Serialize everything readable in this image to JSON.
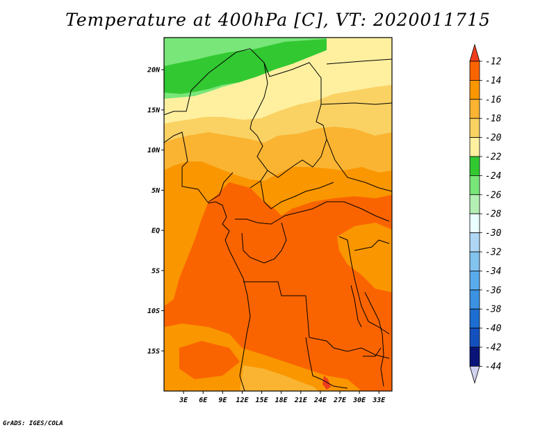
{
  "title": "Temperature at 400hPa [C], VT: 2020011715",
  "credit": "GrADS: IGES/COLA",
  "map": {
    "lon_range": [
      0,
      35
    ],
    "lat_range": [
      -20,
      24
    ],
    "lat_ticks": [
      {
        "value": 20,
        "label": "20N"
      },
      {
        "value": 15,
        "label": "15N"
      },
      {
        "value": 10,
        "label": "10N"
      },
      {
        "value": 5,
        "label": "5N"
      },
      {
        "value": 0,
        "label": "EQ"
      },
      {
        "value": -5,
        "label": "5S"
      },
      {
        "value": -10,
        "label": "10S"
      },
      {
        "value": -15,
        "label": "15S"
      }
    ],
    "lon_ticks": [
      {
        "value": 3,
        "label": "3E"
      },
      {
        "value": 6,
        "label": "6E"
      },
      {
        "value": 9,
        "label": "9E"
      },
      {
        "value": 12,
        "label": "12E"
      },
      {
        "value": 15,
        "label": "15E"
      },
      {
        "value": 18,
        "label": "18E"
      },
      {
        "value": 21,
        "label": "21E"
      },
      {
        "value": 24,
        "label": "24E"
      },
      {
        "value": 27,
        "label": "27E"
      },
      {
        "value": 30,
        "label": "30E"
      },
      {
        "value": 33,
        "label": "33E"
      }
    ]
  },
  "colorbar": {
    "labels": [
      "-12",
      "-14",
      "-16",
      "-18",
      "-20",
      "-22",
      "-24",
      "-26",
      "-28",
      "-30",
      "-32",
      "-34",
      "-36",
      "-38",
      "-40",
      "-42",
      "-44"
    ],
    "colors": [
      "#f03c1e",
      "#fa6400",
      "#fa9600",
      "#fab432",
      "#fad264",
      "#fff0a0",
      "#32c832",
      "#78e678",
      "#b4f0b4",
      "#eaffff",
      "#afd7f5",
      "#82c3f0",
      "#5aabeb",
      "#3c91e1",
      "#1e6ed2",
      "#1450be",
      "#0a1478",
      "#d2d2f0"
    ]
  },
  "temperature_zones": [
    {
      "name": "band -24 to -22",
      "color": "#32c832"
    },
    {
      "name": "band -26 to -24",
      "color": "#78e678"
    },
    {
      "name": "band -22 to -20",
      "color": "#fff0a0"
    },
    {
      "name": "band -20 to -18",
      "color": "#fad264"
    },
    {
      "name": "band -18 to -16",
      "color": "#fab432"
    },
    {
      "name": "band -16 to -14",
      "color": "#fa9600"
    },
    {
      "name": "band -14 to -12",
      "color": "#fa6400"
    },
    {
      "name": "band above -12",
      "color": "#f03c1e"
    }
  ]
}
